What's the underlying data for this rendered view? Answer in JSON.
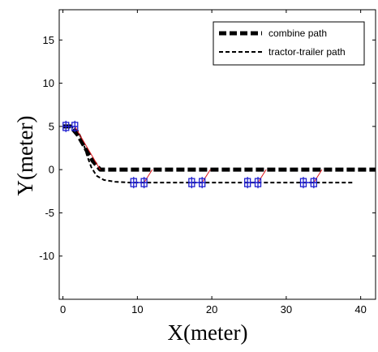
{
  "chart_data": {
    "type": "line",
    "title": "",
    "xlabel": "X(meter)",
    "ylabel": "Y(meter)",
    "xlim": [
      -0.5,
      42
    ],
    "ylim": [
      -15,
      18.5
    ],
    "xticks": [
      0,
      10,
      20,
      30,
      40
    ],
    "yticks": [
      -10,
      -5,
      0,
      5,
      10,
      15
    ],
    "grid": false,
    "legend_position": "top-right",
    "series": [
      {
        "name": "combine path",
        "style": "dashed-thick",
        "color": "#000000",
        "x": [
          0,
          1,
          2,
          3,
          4,
          5,
          6,
          10,
          20,
          30,
          42
        ],
        "y": [
          5,
          5,
          4,
          2.5,
          1,
          0,
          0,
          0,
          0,
          0,
          0
        ]
      },
      {
        "name": "tractor-trailer path",
        "style": "dashed-thin",
        "color": "#000000",
        "x": [
          0,
          1,
          2,
          2.7,
          3.2,
          3.8,
          4.5,
          5.5,
          7,
          9,
          12,
          20,
          30,
          39
        ],
        "y": [
          5,
          5,
          4.5,
          3.2,
          1.7,
          0.3,
          -0.7,
          -1.2,
          -1.4,
          -1.5,
          -1.5,
          -1.5,
          -1.5,
          -1.5
        ]
      }
    ],
    "vehicles": [
      {
        "x": [
          0.4,
          1.6
        ],
        "y": 5
      },
      {
        "x": [
          9.5,
          10.9
        ],
        "y": -1.5
      },
      {
        "x": [
          17.3,
          18.7
        ],
        "y": -1.5
      },
      {
        "x": [
          24.8,
          26.2
        ],
        "y": -1.5
      },
      {
        "x": [
          32.3,
          33.7
        ],
        "y": -1.5
      }
    ],
    "connectors": [
      {
        "from": [
          1.6,
          5
        ],
        "to": [
          5,
          0
        ]
      },
      {
        "from": [
          10.9,
          -1.5
        ],
        "to": [
          12,
          0
        ]
      },
      {
        "from": [
          18.7,
          -1.5
        ],
        "to": [
          19.8,
          0
        ]
      },
      {
        "from": [
          26.2,
          -1.5
        ],
        "to": [
          27.3,
          0
        ]
      },
      {
        "from": [
          33.7,
          -1.5
        ],
        "to": [
          34.8,
          0
        ]
      }
    ],
    "colors": {
      "vehicle": "#1f1fd0",
      "connector": "#e0141a",
      "axis": "#000000"
    }
  }
}
